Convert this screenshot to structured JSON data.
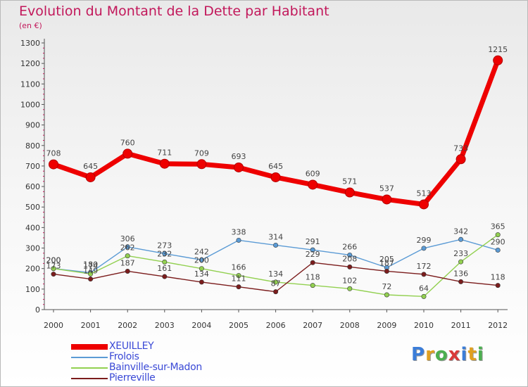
{
  "title": "Evolution du Montant de la Dette par Habitant",
  "unit": "(en €)",
  "logo": {
    "text": "Proxiti",
    "colors": [
      "#3b7dd8",
      "#e0a020",
      "#4caf50",
      "#d93a3a",
      "#3b7dd8",
      "#e0a020",
      "#4caf50"
    ]
  },
  "chart_data": {
    "type": "line",
    "title": "Evolution du Montant de la Dette par Habitant",
    "ylabel": "(en €)",
    "xlabel": "",
    "ylim": [
      0,
      1300
    ],
    "yticks": [
      0,
      100,
      200,
      300,
      400,
      500,
      600,
      700,
      800,
      900,
      1000,
      1100,
      1200,
      1300
    ],
    "categories": [
      "2000",
      "2001",
      "2002",
      "2003",
      "2004",
      "2005",
      "2006",
      "2007",
      "2008",
      "2009",
      "2010",
      "2011",
      "2012"
    ],
    "grid": false,
    "legend_position": "bottom-left",
    "series": [
      {
        "name": "XEUILLEY",
        "color": "#ee0000",
        "values": [
          708,
          645,
          760,
          711,
          709,
          693,
          645,
          609,
          571,
          537,
          513,
          733,
          1215
        ]
      },
      {
        "name": "Frolois",
        "color": "#5b9bd5",
        "values": [
          200,
          180,
          306,
          273,
          242,
          338,
          314,
          291,
          266,
          205,
          299,
          342,
          290
        ]
      },
      {
        "name": "Bainville-sur-Madon",
        "color": "#92d050",
        "values": [
          200,
          174,
          262,
          232,
          200,
          166,
          134,
          118,
          102,
          72,
          64,
          233,
          365
        ]
      },
      {
        "name": "Pierreville",
        "color": "#7b1c1c",
        "values": [
          173,
          149,
          187,
          161,
          134,
          111,
          87,
          229,
          208,
          187,
          172,
          136,
          118
        ]
      }
    ]
  }
}
